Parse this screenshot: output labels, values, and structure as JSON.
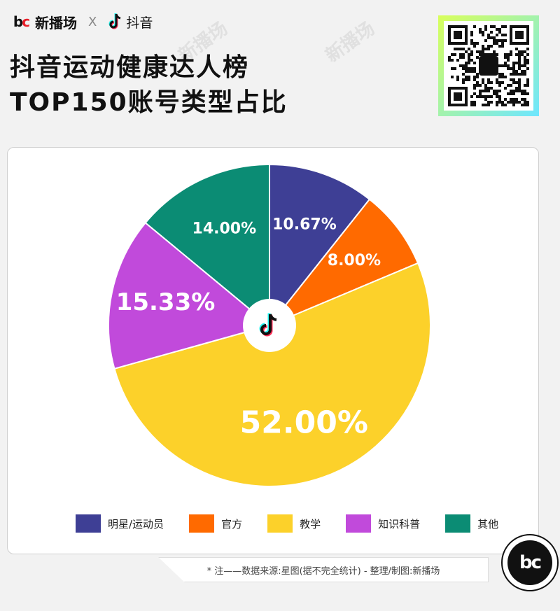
{
  "header": {
    "brand_name": "新播场",
    "separator": "X",
    "platform_name": "抖音"
  },
  "title": {
    "line1": "抖音运动健康达人榜",
    "line2": "TOP150账号类型占比"
  },
  "watermark_text": "新播场",
  "badge_text": "bc",
  "colors": {
    "navy": "#3e3f95",
    "orange": "#ff6a00",
    "yellow": "#fcd12a",
    "purple": "#c14adb",
    "teal": "#0b8c74"
  },
  "chart_data": {
    "type": "pie",
    "title": "",
    "slices": [
      {
        "name": "明星/运动员",
        "value": 10.67,
        "label": "10.67%",
        "color": "#3e3f95"
      },
      {
        "name": "官方",
        "value": 8.0,
        "label": "8.00%",
        "color": "#ff6a00"
      },
      {
        "name": "教学",
        "value": 52.0,
        "label": "52.00%",
        "color": "#fcd12a"
      },
      {
        "name": "知识科普",
        "value": 15.33,
        "label": "15.33%",
        "color": "#c14adb"
      },
      {
        "name": "其他",
        "value": 14.0,
        "label": "14.00%",
        "color": "#0b8c74"
      }
    ],
    "start_angle": "top",
    "direction": "clockwise",
    "center_icon": "tiktok-icon",
    "legend_position": "bottom"
  },
  "footnote": "* 注——数据来源:星图(据不完全统计)    -    整理/制图:新播场"
}
